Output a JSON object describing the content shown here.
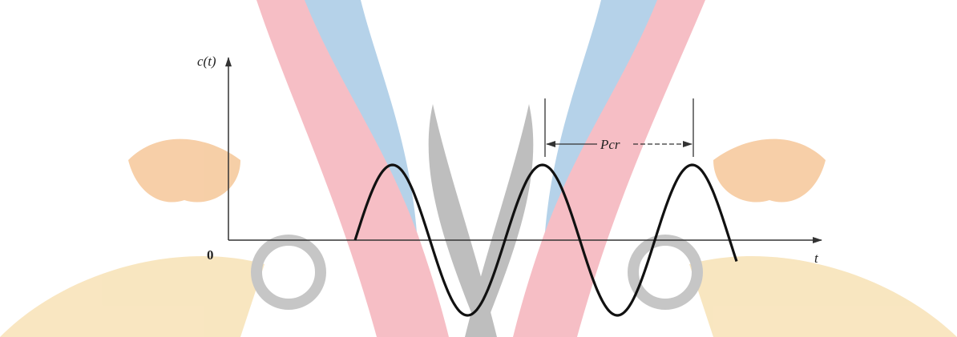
{
  "axis": {
    "y_label": "c(t)",
    "x_label": "t",
    "origin": "0"
  },
  "annotation": {
    "period": "Pcr"
  }
}
